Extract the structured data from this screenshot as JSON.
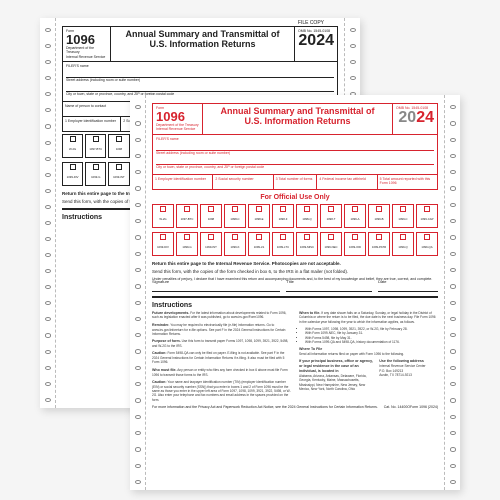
{
  "form": {
    "number": "1096",
    "number_prefix": "Form",
    "title_l1": "Annual Summary and Transmittal of",
    "title_l2": "U.S. Information Returns",
    "year_prefix": "20",
    "year_suffix": "24",
    "omb": "OMB No. 1545-0108",
    "dept": "Department of the Treasury\nInternal Revenue Service",
    "file_copy": "FILE COPY",
    "official_use": "For Official Use Only",
    "filer_label": "FILER'S name",
    "street_label": "Street address (including room or suite number)",
    "city_label": "City or town, state or province, country, and ZIP or foreign postal code",
    "contact_label": "Name of person to contact",
    "phone_label": "Telephone number",
    "email_label": "Email address",
    "fax_label": "Fax number",
    "box1": "1 Employer identification number",
    "box2": "2 Social security number",
    "box3": "3 Total number of forms",
    "box4": "4 Federal income tax withheld",
    "box5": "5 Total amount reported with this Form 1096",
    "return_line": "Return this entire page to the Internal Revenue Service. Photocopies are not acceptable.",
    "send_line": "Send this form, with the copies of the form checked in box 6, to the IRS in a flat mailer (not folded).",
    "sig_label": "Signature",
    "sig_title": "Title",
    "sig_date": "Date",
    "penalties": "Under penalties of perjury, I declare that I have examined this return and accompanying documents and, to the best of my knowledge and belief, they are true, correct, and complete."
  },
  "checkboxes": [
    "W-2G",
    "1097-BTC",
    "1098",
    "1098-C",
    "1098-E",
    "1098-F",
    "1098-Q",
    "1098-T",
    "1099-A",
    "1099-B",
    "1099-C",
    "1099-CAP",
    "1099-DIV",
    "1099-G",
    "1099-INT",
    "1099-K",
    "1099-LS",
    "1099-LTC",
    "1099-MISC",
    "1099-NEC",
    "1099-OID",
    "1099-PATR",
    "1099-Q",
    "1099-QA"
  ],
  "instructions": {
    "heading": "Instructions",
    "para1_b": "Future developments.",
    "para1": "For the latest information about developments related to Form 1096, such as legislation enacted after it was published, go to www.irs.gov/Form1096.",
    "para2_b": "Reminder.",
    "para2": "You may be required to electronically file (e-file) information returns. Go to www.irs.gov/inforeturn for e-file options. See part F in the 2024 General Instructions for Certain Information Returns.",
    "para3_b": "Purpose of form.",
    "para3": "Use this form to transmit paper Forms 1097, 1098, 1099, 3921, 3922, 5498, and W-2G to the IRS.",
    "para4_b": "Caution:",
    "para4": "Form 5498-QA can only be filed on paper. E-filing is not available. See part F in the 2024 General Instructions for Certain Information Returns if e-filing. It also must be filed with 5 Form 1096.",
    "para5_b": "Who must file.",
    "para5": "Any person or entity who files any form checked in box 6 above must file Form 1096 to transmit those forms to the IRS.",
    "para6_b": "Caution:",
    "para6": "Your name and taxpayer identification number (TIN) (employer identification number (EIN) or social security number (SSN)) that you enter in boxes 1 and 2 of Form 1096 must be the same as those you enter in the upper left area of Form 1097, 1098, 1099, 3921, 3922, 5498, or W-2G. Also enter your telephone and fax numbers and email address in the spaces provided on the form.",
    "when_b": "When to file.",
    "when_body": "If any date shown falls on a Saturday, Sunday, or legal holiday in the District of Columbia or where the return is to be filed, the due date is the next business day. File Form 1096 in the calendar year following the year to which the information applies, as follows.",
    "when_items": [
      "With Forms 1097, 1098, 1099, 3921, 3922, or W-2G, file by February 28.",
      "With Form 1099-NEC, file by January 31.",
      "With Forms 5498, file by May 31.",
      "With Forms 1099-QA and 5498-QA, history documentation of 1176."
    ],
    "where_b": "Where To File",
    "where": "Send all information returns filed on paper with Form 1096 to the following.",
    "addr_left_b": "If your principal business, office or agency, or legal residence in the case of an individual, is located in",
    "addr_left": "Alabama, Arizona, Arkansas, Delaware, Florida, Georgia, Kentucky, Maine, Massachusetts, Mississippi, New Hampshire, New Jersey, New Mexico, New York, North Carolina, Ohio",
    "addr_right_b": "Use the following address",
    "addr_right": "Internal Revenue Service Center\nP.O. Box 149213\nAustin, TX 78714-9213"
  },
  "footer": {
    "left": "For more information and the Privacy Act and Paperwork Reduction Act Notice, see the 2024 General Instructions for Certain Information Returns.",
    "cat": "Cat. No. 14400O",
    "right": "Form 1096 (2024)"
  },
  "colors": {
    "red": "#d7232e",
    "black": "#222222",
    "bg": "#f5f5f5"
  },
  "holes_per_side": 24
}
